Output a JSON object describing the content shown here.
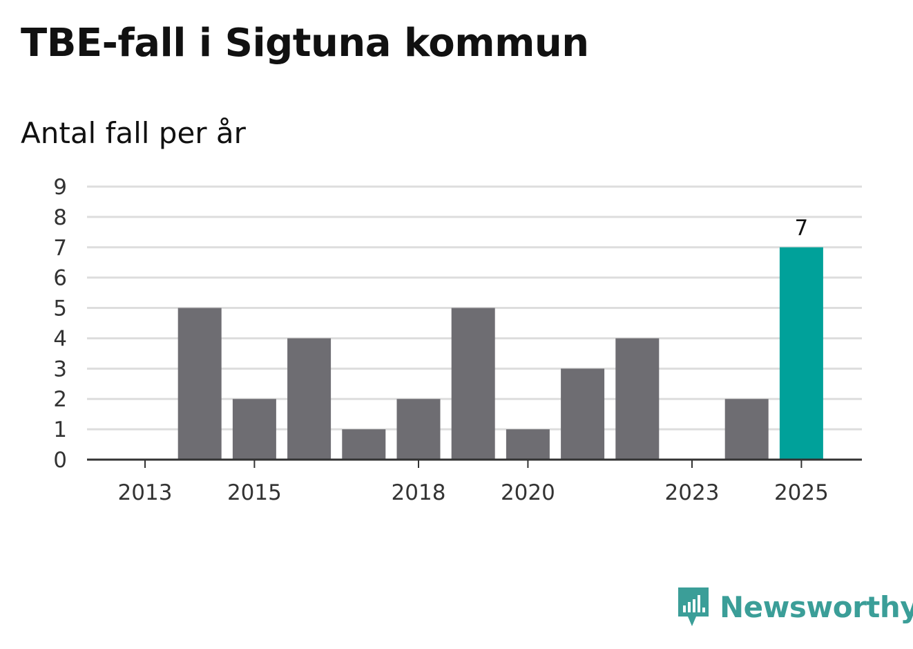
{
  "chart_data": {
    "type": "bar",
    "title": "TBE-fall i Sigtuna kommun",
    "subtitle": "Antal fall per år",
    "categories": [
      "2013",
      "2014",
      "2015",
      "2016",
      "2017",
      "2018",
      "2019",
      "2020",
      "2021",
      "2022",
      "2023",
      "2024",
      "2025"
    ],
    "values": [
      0,
      5,
      2,
      4,
      1,
      2,
      5,
      1,
      3,
      4,
      0,
      2,
      7
    ],
    "x_tick_labels": [
      "2013",
      "2015",
      "2018",
      "2020",
      "2023",
      "2025"
    ],
    "y_ticks": [
      "0",
      "1",
      "2",
      "3",
      "4",
      "5",
      "6",
      "7",
      "8",
      "9"
    ],
    "ylim": [
      0,
      9
    ],
    "highlight_category": "2025",
    "highlight_label": "7",
    "xlabel": "",
    "ylabel": "",
    "grid": true
  },
  "colors": {
    "bar": "#6e6d72",
    "highlight": "#00a19a",
    "grid": "#dddddd",
    "axis": "#333333",
    "brand": "#3b9e98"
  },
  "brand": {
    "name": "Newsworthy",
    "icon": "newsworthy-logo-icon"
  }
}
